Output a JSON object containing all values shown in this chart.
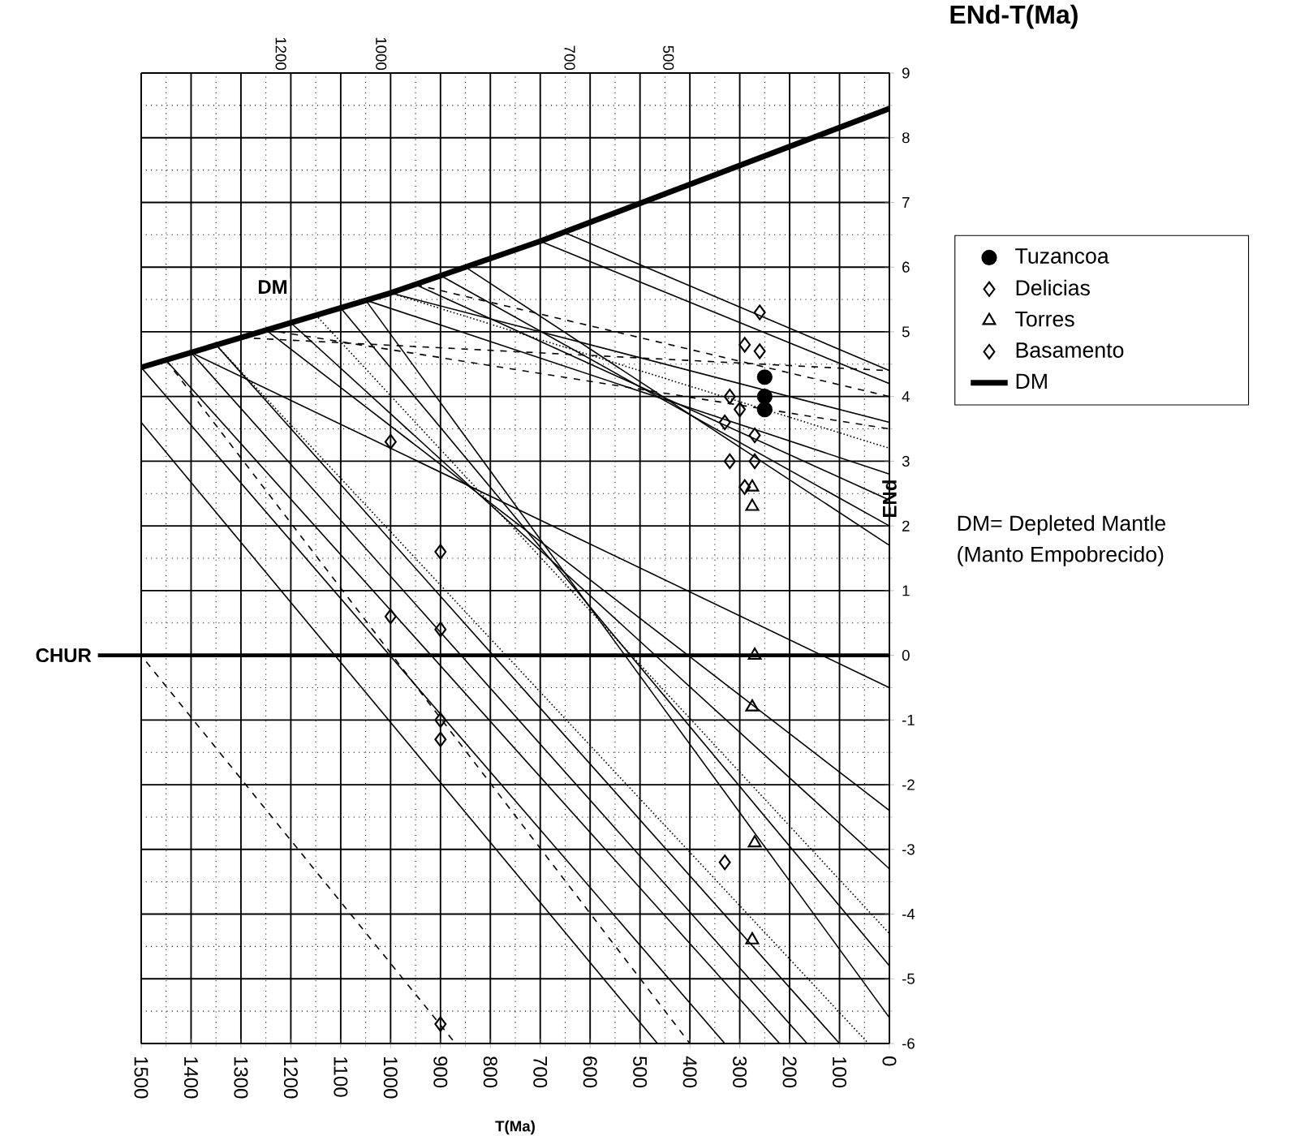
{
  "chart_data": {
    "type": "scatter",
    "title": "ENd-T(Ma)",
    "xlabel": "T(Ma)",
    "ylabel": "ENd",
    "xlim": [
      1500,
      0
    ],
    "ylim": [
      -6,
      9
    ],
    "xticks": [
      1500,
      1400,
      1300,
      1200,
      1100,
      1000,
      900,
      800,
      700,
      600,
      500,
      400,
      300,
      200,
      100,
      0
    ],
    "yticks": [
      -6,
      -5,
      -4,
      -3,
      -2,
      -1,
      0,
      1,
      2,
      3,
      4,
      5,
      6,
      7,
      8,
      9
    ],
    "grid": true,
    "legend": "right",
    "ref_lines": [
      {
        "axis": "y",
        "value": 0,
        "label": "CHUR"
      }
    ],
    "annotations": [
      "DM",
      "1200",
      "1000",
      "700",
      "500",
      "DM= Depleted Mantle",
      "(Manto Empobrecido)"
    ],
    "series": [
      {
        "type": "line",
        "x": [
          650,
          0
        ],
        "values": [
          6.53,
          4.4
        ],
        "color": "#000000",
        "line_style": "solid"
      },
      {
        "type": "line",
        "x": [
          700,
          0
        ],
        "values": [
          6.4,
          4.2
        ],
        "color": "#000000",
        "line_style": "solid"
      },
      {
        "type": "line",
        "x": [
          950,
          0
        ],
        "values": [
          5.73,
          4.0
        ],
        "color": "#000000",
        "line_style": "dashed"
      },
      {
        "type": "line",
        "x": [
          1000,
          0
        ],
        "values": [
          5.6,
          3.6
        ],
        "color": "#000000",
        "line_style": "solid"
      },
      {
        "type": "line",
        "x": [
          1000,
          0
        ],
        "values": [
          5.6,
          3.2
        ],
        "color": "#000000",
        "line_style": "dotted"
      },
      {
        "type": "line",
        "x": [
          1050,
          0
        ],
        "values": [
          5.49,
          2.8
        ],
        "color": "#000000",
        "line_style": "solid"
      },
      {
        "type": "line",
        "x": [
          950,
          0
        ],
        "values": [
          5.73,
          2.4
        ],
        "color": "#000000",
        "line_style": "solid"
      },
      {
        "type": "line",
        "x": [
          900,
          0
        ],
        "values": [
          5.87,
          2.0
        ],
        "color": "#000000",
        "line_style": "solid"
      },
      {
        "type": "line",
        "x": [
          850,
          0
        ],
        "values": [
          6.0,
          1.7
        ],
        "color": "#000000",
        "line_style": "solid"
      },
      {
        "type": "line",
        "x": [
          1300,
          0
        ],
        "values": [
          4.91,
          4.4
        ],
        "color": "#000000",
        "line_style": "dashed"
      },
      {
        "type": "line",
        "x": [
          1250,
          0
        ],
        "values": [
          5.03,
          3.5
        ],
        "color": "#000000",
        "line_style": "dashed"
      },
      {
        "type": "line",
        "x": [
          1400,
          0
        ],
        "values": [
          4.68,
          -0.5
        ],
        "color": "#000000",
        "line_style": "solid"
      },
      {
        "type": "line",
        "x": [
          1250,
          0
        ],
        "values": [
          5.03,
          -2.4
        ],
        "color": "#000000",
        "line_style": "solid"
      },
      {
        "type": "line",
        "x": [
          1200,
          0
        ],
        "values": [
          5.14,
          -3.3
        ],
        "color": "#000000",
        "line_style": "solid"
      },
      {
        "type": "line",
        "x": [
          1150,
          0
        ],
        "values": [
          5.26,
          -4.3
        ],
        "color": "#000000",
        "line_style": "dotted"
      },
      {
        "type": "line",
        "x": [
          1100,
          0
        ],
        "values": [
          5.37,
          -4.8
        ],
        "color": "#000000",
        "line_style": "solid"
      },
      {
        "type": "line",
        "x": [
          1050,
          0
        ],
        "values": [
          5.49,
          -5.6
        ],
        "color": "#000000",
        "line_style": "solid"
      },
      {
        "type": "line",
        "x": [
          1500,
          465
        ],
        "values": [
          3.6,
          -6
        ],
        "color": "#000000",
        "line_style": "solid"
      },
      {
        "type": "line",
        "x": [
          1500,
          330
        ],
        "values": [
          4.45,
          -6
        ],
        "color": "#000000",
        "line_style": "solid"
      },
      {
        "type": "line",
        "x": [
          1450,
          220
        ],
        "values": [
          4.56,
          -6
        ],
        "color": "#000000",
        "line_style": "solid"
      },
      {
        "type": "line",
        "x": [
          1400,
          165
        ],
        "values": [
          4.68,
          -6
        ],
        "color": "#000000",
        "line_style": "solid"
      },
      {
        "type": "line",
        "x": [
          1450,
          400
        ],
        "values": [
          4.56,
          -6
        ],
        "color": "#000000",
        "line_style": "dashed"
      },
      {
        "type": "line",
        "x": [
          1490,
          870
        ],
        "values": [
          -0.1,
          -6
        ],
        "color": "#000000",
        "line_style": "dashed"
      },
      {
        "type": "line",
        "x": [
          1350,
          100
        ],
        "values": [
          4.8,
          -6
        ],
        "color": "#000000",
        "line_style": "solid"
      },
      {
        "type": "line",
        "x": [
          1350,
          42
        ],
        "values": [
          4.8,
          -6
        ],
        "color": "#000000",
        "line_style": "dotted"
      },
      {
        "name": "Tuzancoa",
        "marker": "circle",
        "color": "#000000",
        "x": [
          250,
          250,
          250
        ],
        "values": [
          4.3,
          4.0,
          3.8
        ]
      },
      {
        "name": "Delicias",
        "marker": "diamond",
        "color": "#000000",
        "x": [
          260,
          290,
          260,
          320,
          300,
          330,
          270,
          320,
          270,
          290,
          330
        ],
        "values": [
          5.3,
          4.8,
          4.7,
          4.0,
          3.8,
          3.6,
          3.4,
          3.0,
          3.0,
          2.6,
          -3.2
        ]
      },
      {
        "name": "Torres",
        "marker": "triangle",
        "color": "#000000",
        "x": [
          275,
          275,
          270,
          275,
          270,
          275
        ],
        "values": [
          2.3,
          2.6,
          0.0,
          -0.8,
          -2.9,
          -4.4
        ]
      },
      {
        "name": "Basamento",
        "marker": "diamond",
        "color": "#000000",
        "x": [
          1000,
          900,
          1000,
          900,
          900,
          900,
          900
        ],
        "values": [
          3.3,
          1.6,
          0.6,
          0.4,
          -1.0,
          -1.3,
          -5.7
        ]
      },
      {
        "type": "line",
        "name": "DM",
        "x": [
          1500,
          1000,
          700,
          0
        ],
        "values": [
          4.45,
          5.6,
          6.4,
          8.45
        ],
        "color": "#000000",
        "line_style": "solid"
      }
    ]
  }
}
